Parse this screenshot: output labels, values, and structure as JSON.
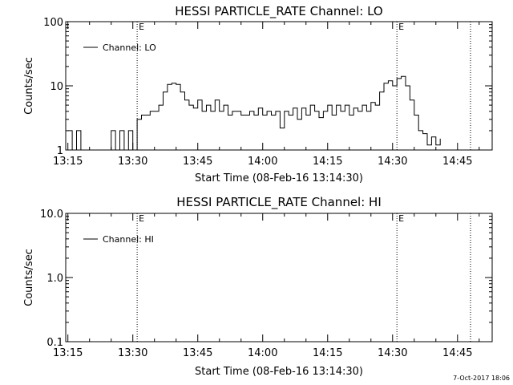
{
  "footer": {
    "timestamp": "7-Oct-2017 18:06"
  },
  "chart_data": [
    {
      "type": "line",
      "title": "HESSI PARTICLE_RATE Channel: LO",
      "xlabel": "Start Time (08-Feb-16 13:14:30)",
      "ylabel": "Counts/sec",
      "yscale": "log",
      "xlim": [
        "13:15",
        "14:53"
      ],
      "ylim": [
        1,
        100
      ],
      "x_ticks": [
        "13:15",
        "13:30",
        "13:45",
        "14:00",
        "14:15",
        "14:30",
        "14:45"
      ],
      "y_ticks": [
        "1",
        "10",
        "100"
      ],
      "markers": [
        {
          "time": "13:31",
          "label": "E"
        },
        {
          "time": "14:31",
          "label": "E"
        },
        {
          "time": "14:48",
          "label": ""
        }
      ],
      "legend": {
        "position": "top-left",
        "entries": [
          "Channel: LO"
        ]
      },
      "series": [
        {
          "name": "Channel: LO",
          "x": [
            "13:15",
            "13:16",
            "13:17",
            "13:18",
            "13:24",
            "13:25",
            "13:26",
            "13:27",
            "13:28",
            "13:29",
            "13:30",
            "13:31",
            "13:32",
            "13:34",
            "13:36",
            "13:37",
            "13:38",
            "13:39",
            "13:40",
            "13:41",
            "13:42",
            "13:43",
            "13:44",
            "13:45",
            "13:46",
            "13:47",
            "13:48",
            "13:49",
            "13:50",
            "13:51",
            "13:52",
            "13:53",
            "13:55",
            "13:57",
            "13:58",
            "13:59",
            "14:00",
            "14:01",
            "14:02",
            "14:03",
            "14:04",
            "14:05",
            "14:06",
            "14:07",
            "14:08",
            "14:09",
            "14:10",
            "14:11",
            "14:12",
            "14:13",
            "14:14",
            "14:15",
            "14:16",
            "14:17",
            "14:18",
            "14:19",
            "14:20",
            "14:21",
            "14:22",
            "14:23",
            "14:24",
            "14:25",
            "14:26",
            "14:27",
            "14:28",
            "14:29",
            "14:30",
            "14:31",
            "14:32",
            "14:33",
            "14:34",
            "14:35",
            "14:36",
            "14:37",
            "14:38",
            "14:39",
            "14:40",
            "14:41"
          ],
          "y": [
            2,
            1,
            2,
            1,
            1,
            2,
            1,
            2,
            1,
            2,
            1,
            3,
            3.5,
            4,
            5,
            8,
            10.5,
            11,
            10.5,
            8,
            6,
            5,
            4.5,
            6,
            4,
            5,
            4,
            6,
            4,
            5,
            3.5,
            4,
            3.5,
            4,
            3.5,
            4.5,
            3.5,
            4,
            3.5,
            4,
            2.2,
            4,
            3.5,
            4.5,
            3,
            4.5,
            3.5,
            5,
            4,
            3.2,
            4,
            5,
            3.5,
            5,
            4,
            5,
            3.5,
            4.5,
            4,
            5,
            4,
            5.5,
            5,
            8,
            11,
            12,
            10,
            13,
            14,
            10,
            6,
            3.5,
            2,
            1.8,
            1.2,
            1.6,
            1.2,
            1.5
          ]
        }
      ]
    },
    {
      "type": "line",
      "title": "HESSI PARTICLE_RATE Channel: HI",
      "xlabel": "Start Time (08-Feb-16 13:14:30)",
      "ylabel": "Counts/sec",
      "yscale": "log",
      "xlim": [
        "13:15",
        "14:53"
      ],
      "ylim": [
        0.1,
        10
      ],
      "x_ticks": [
        "13:15",
        "13:30",
        "13:45",
        "14:00",
        "14:15",
        "14:30",
        "14:45"
      ],
      "y_ticks": [
        "0.1",
        "1.0",
        "10.0"
      ],
      "markers": [
        {
          "time": "13:31",
          "label": "E"
        },
        {
          "time": "14:31",
          "label": "E"
        },
        {
          "time": "14:48",
          "label": ""
        }
      ],
      "legend": {
        "position": "top-left",
        "entries": [
          "Channel: HI"
        ]
      },
      "series": [
        {
          "name": "Channel: HI",
          "x": [],
          "y": []
        }
      ]
    }
  ]
}
